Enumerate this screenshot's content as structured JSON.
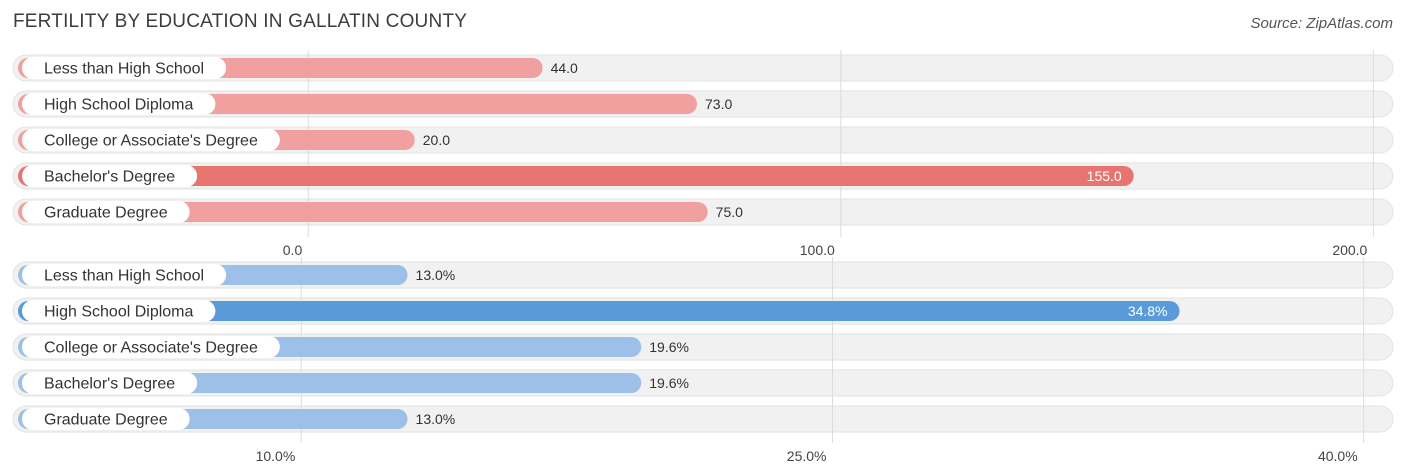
{
  "header": {
    "title": "Fertility by Education in Gallatin County",
    "source": "Source: ZipAtlas.com"
  },
  "chart_data": [
    {
      "type": "bar",
      "orientation": "horizontal",
      "categories": [
        "Less than High School",
        "High School Diploma",
        "College or Associate's Degree",
        "Bachelor's Degree",
        "Graduate Degree"
      ],
      "values": [
        44.0,
        73.0,
        20.0,
        155.0,
        75.0
      ],
      "value_labels": [
        "44.0",
        "73.0",
        "20.0",
        "155.0",
        "75.0"
      ],
      "xlim": [
        -54.5,
        203.5
      ],
      "ticks": [
        0,
        100,
        200
      ],
      "tick_labels": [
        "0.0",
        "100.0",
        "200.0"
      ],
      "highlight_index": 3,
      "color": "#f0a09e",
      "highlight_color": "#e8746f"
    },
    {
      "type": "bar",
      "orientation": "horizontal",
      "categories": [
        "Less than High School",
        "High School Diploma",
        "College or Associate's Degree",
        "Bachelor's Degree",
        "Graduate Degree"
      ],
      "values": [
        13.0,
        34.8,
        19.6,
        19.6,
        13.0
      ],
      "value_labels": [
        "13.0%",
        "34.8%",
        "19.6%",
        "19.6%",
        "13.0%"
      ],
      "xlim": [
        2.0,
        40.8
      ],
      "ticks": [
        10,
        25,
        40
      ],
      "tick_labels": [
        "10.0%",
        "25.0%",
        "40.0%"
      ],
      "highlight_index": 1,
      "color": "#9dc0e8",
      "highlight_color": "#5b9ad9"
    }
  ]
}
